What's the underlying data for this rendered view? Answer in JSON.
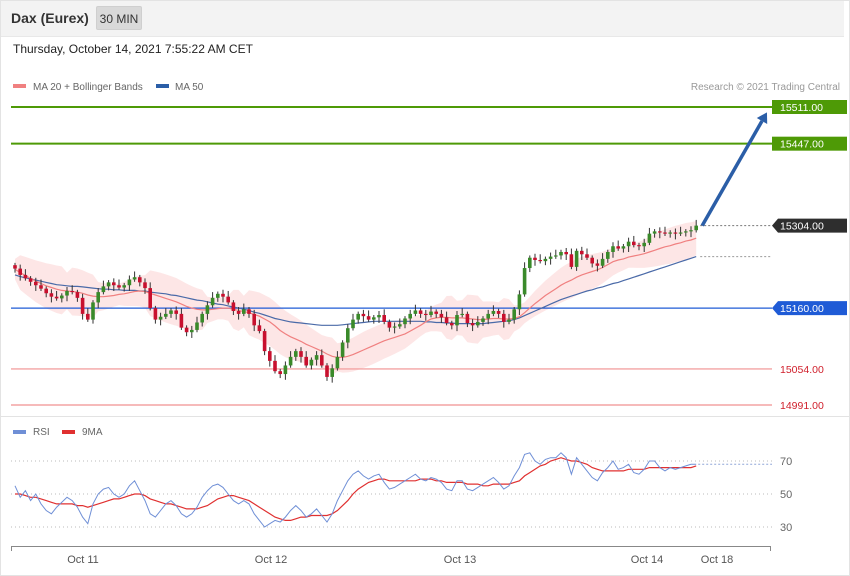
{
  "header": {
    "instrument": "Dax (Eurex)",
    "timeframe": "30 MIN",
    "datetime": "Thursday, October 14, 2021 7:55:22 AM CET"
  },
  "legend": {
    "ma20_label": "MA 20 + Bollinger Bands",
    "ma50_label": "MA 50",
    "credit": "Research © 2021 Trading Central"
  },
  "rsi_legend": {
    "rsi_label": "RSI",
    "ma_label": "9MA"
  },
  "colors": {
    "bull": "#3a8a2a",
    "bear": "#c8102e",
    "ma20": "#f08080",
    "ma50": "#4a6aa8",
    "band": "#fde2e2",
    "target": "#4e9a06",
    "pivot": "#1f5bd6",
    "support": "#f4a3a3",
    "arrow": "#2b5ea7",
    "rsi": "#6f8fd6",
    "rsi_ma": "#e03030"
  },
  "chart_data": [
    {
      "type": "candlestick",
      "x_labels": [
        "Oct 11",
        "Oct 12",
        "Oct 13",
        "Oct 14",
        "Oct 18"
      ],
      "ylim": [
        14970,
        15580
      ],
      "levels": [
        {
          "label": "15511.00",
          "value": 15511,
          "kind": "target"
        },
        {
          "label": "15447.00",
          "value": 15447,
          "kind": "target"
        },
        {
          "label": "15304.00",
          "value": 15304,
          "kind": "last"
        },
        {
          "label": "15160.00",
          "value": 15160,
          "kind": "pivot"
        },
        {
          "label": "15054.00",
          "value": 15054,
          "kind": "support"
        },
        {
          "label": "14991.00",
          "value": 14991,
          "kind": "support"
        }
      ],
      "close": [
        15229,
        15218,
        15212,
        15206,
        15200,
        15194,
        15186,
        15180,
        15177,
        15182,
        15190,
        15188,
        15178,
        15150,
        15140,
        15170,
        15188,
        15198,
        15205,
        15200,
        15196,
        15200,
        15210,
        15214,
        15205,
        15195,
        15160,
        15140,
        15145,
        15150,
        15156,
        15150,
        15126,
        15118,
        15122,
        15135,
        15150,
        15165,
        15178,
        15185,
        15180,
        15170,
        15155,
        15150,
        15158,
        15150,
        15130,
        15120,
        15085,
        15068,
        15050,
        15045,
        15060,
        15075,
        15085,
        15075,
        15060,
        15070,
        15078,
        15060,
        15040,
        15055,
        15075,
        15100,
        15125,
        15140,
        15150,
        15146,
        15140,
        15144,
        15148,
        15136,
        15126,
        15128,
        15132,
        15142,
        15150,
        15156,
        15150,
        15148,
        15154,
        15150,
        15144,
        15134,
        15130,
        15148,
        15150,
        15134,
        15130,
        15136,
        15142,
        15150,
        15155,
        15150,
        15136,
        15140,
        15158,
        15184,
        15230,
        15248,
        15244,
        15242,
        15246,
        15250,
        15252,
        15258,
        15254,
        15232,
        15260,
        15254,
        15248,
        15238,
        15234,
        15246,
        15258,
        15268,
        15264,
        15268,
        15276,
        15270,
        15268,
        15274,
        15290,
        15294,
        15292,
        15290,
        15292,
        15290,
        15292,
        15294,
        15296,
        15304
      ],
      "ma20": [
        15228,
        15222,
        15217,
        15212,
        15207,
        15203,
        15199,
        15196,
        15193,
        15191,
        15190,
        15189,
        15188,
        15186,
        15183,
        15181,
        15180,
        15180,
        15181,
        15182,
        15184,
        15185,
        15187,
        15189,
        15190,
        15189,
        15186,
        15183,
        15180,
        15177,
        15174,
        15171,
        15167,
        15163,
        15160,
        15158,
        15157,
        15157,
        15158,
        15159,
        15160,
        15160,
        15158,
        15156,
        15154,
        15152,
        15149,
        15146,
        15141,
        15136,
        15129,
        15121,
        15115,
        15110,
        15106,
        15102,
        15097,
        15093,
        15089,
        15085,
        15080,
        15076,
        15074,
        15074,
        15076,
        15079,
        15083,
        15087,
        15091,
        15095,
        15099,
        15103,
        15106,
        15109,
        15112,
        15115,
        15120,
        15125,
        15130,
        15136,
        15141,
        15143,
        15144,
        15144,
        15143,
        15143,
        15143,
        15142,
        15141,
        15140,
        15140,
        15141,
        15142,
        15142,
        15141,
        15141,
        15142,
        15145,
        15152,
        15160,
        15168,
        15175,
        15182,
        15188,
        15194,
        15200,
        15205,
        15209,
        15214,
        15218,
        15221,
        15224,
        15227,
        15231,
        15236,
        15241,
        15244,
        15246,
        15249,
        15251,
        15253,
        15255,
        15258,
        15261,
        15264,
        15267,
        15269,
        15272,
        15274,
        15277,
        15279,
        15282
      ],
      "ma50": [
        15218,
        15215,
        15213,
        15211,
        15209,
        15207,
        15205,
        15203,
        15201,
        15200,
        15199,
        15198,
        15198,
        15197,
        15196,
        15195,
        15194,
        15193,
        15193,
        15192,
        15192,
        15191,
        15191,
        15191,
        15190,
        15190,
        15188,
        15187,
        15186,
        15185,
        15183,
        15182,
        15180,
        15178,
        15176,
        15174,
        15173,
        15171,
        15169,
        15167,
        15166,
        15164,
        15162,
        15160,
        15158,
        15156,
        15153,
        15151,
        15148,
        15145,
        15142,
        15140,
        15138,
        15136,
        15135,
        15134,
        15133,
        15132,
        15131,
        15130,
        15130,
        15130,
        15130,
        15131,
        15132,
        15133,
        15134,
        15135,
        15136,
        15137,
        15137,
        15137,
        15137,
        15137,
        15137,
        15137,
        15137,
        15137,
        15137,
        15136,
        15136,
        15135,
        15135,
        15134,
        15134,
        15133,
        15133,
        15133,
        15133,
        15133,
        15133,
        15134,
        15135,
        15136,
        15137,
        15138,
        15140,
        15143,
        15147,
        15151,
        15155,
        15159,
        15163,
        15167,
        15171,
        15175,
        15178,
        15181,
        15184,
        15187,
        15190,
        15192,
        15195,
        15197,
        15200,
        15203,
        15205,
        15208,
        15211,
        15214,
        15217,
        15220,
        15223,
        15226,
        15229,
        15232,
        15235,
        15238,
        15241,
        15244,
        15247,
        15250
      ],
      "rsi": [
        55,
        48,
        52,
        46,
        50,
        44,
        40,
        38,
        42,
        45,
        48,
        46,
        42,
        36,
        32,
        44,
        50,
        53,
        54,
        50,
        48,
        50,
        55,
        58,
        52,
        46,
        38,
        36,
        40,
        44,
        46,
        43,
        38,
        36,
        38,
        42,
        48,
        52,
        55,
        56,
        54,
        50,
        46,
        44,
        46,
        44,
        38,
        34,
        30,
        32,
        34,
        33,
        36,
        40,
        43,
        40,
        36,
        38,
        41,
        37,
        33,
        38,
        46,
        52,
        58,
        62,
        64,
        61,
        59,
        61,
        62,
        57,
        53,
        54,
        56,
        58,
        60,
        62,
        59,
        58,
        60,
        59,
        57,
        53,
        52,
        58,
        58,
        53,
        52,
        54,
        56,
        58,
        60,
        57,
        53,
        55,
        61,
        66,
        74,
        75,
        70,
        68,
        71,
        72,
        72,
        75,
        72,
        62,
        72,
        68,
        64,
        60,
        58,
        63,
        66,
        70,
        65,
        66,
        68,
        63,
        62,
        65,
        70,
        70,
        66,
        64,
        66,
        65,
        66,
        67,
        68,
        68
      ],
      "rsi_ma": [
        50,
        50,
        49,
        48,
        48,
        47,
        46,
        45,
        44,
        44,
        44,
        44,
        43,
        43,
        42,
        43,
        44,
        45,
        46,
        47,
        47,
        48,
        49,
        50,
        50,
        49,
        47,
        46,
        45,
        44,
        44,
        43,
        42,
        41,
        41,
        41,
        42,
        43,
        45,
        47,
        48,
        49,
        49,
        48,
        47,
        46,
        44,
        42,
        40,
        38,
        36,
        35,
        34,
        34,
        35,
        36,
        36,
        37,
        37,
        37,
        37,
        38,
        40,
        43,
        46,
        50,
        53,
        55,
        57,
        58,
        59,
        59,
        58,
        58,
        58,
        58,
        58,
        58,
        59,
        59,
        59,
        58,
        58,
        57,
        57,
        57,
        57,
        56,
        56,
        56,
        55,
        55,
        56,
        56,
        56,
        56,
        57,
        58,
        61,
        63,
        65,
        67,
        68,
        70,
        71,
        72,
        71,
        70,
        70,
        69,
        68,
        66,
        65,
        64,
        64,
        64,
        64,
        64,
        65,
        65,
        65,
        65,
        66,
        66,
        66,
        66,
        66,
        66,
        66,
        66,
        66,
        67
      ],
      "rsi_levels": [
        {
          "label": "70",
          "value": 70
        },
        {
          "label": "50",
          "value": 50
        },
        {
          "label": "30",
          "value": 30
        }
      ]
    }
  ]
}
